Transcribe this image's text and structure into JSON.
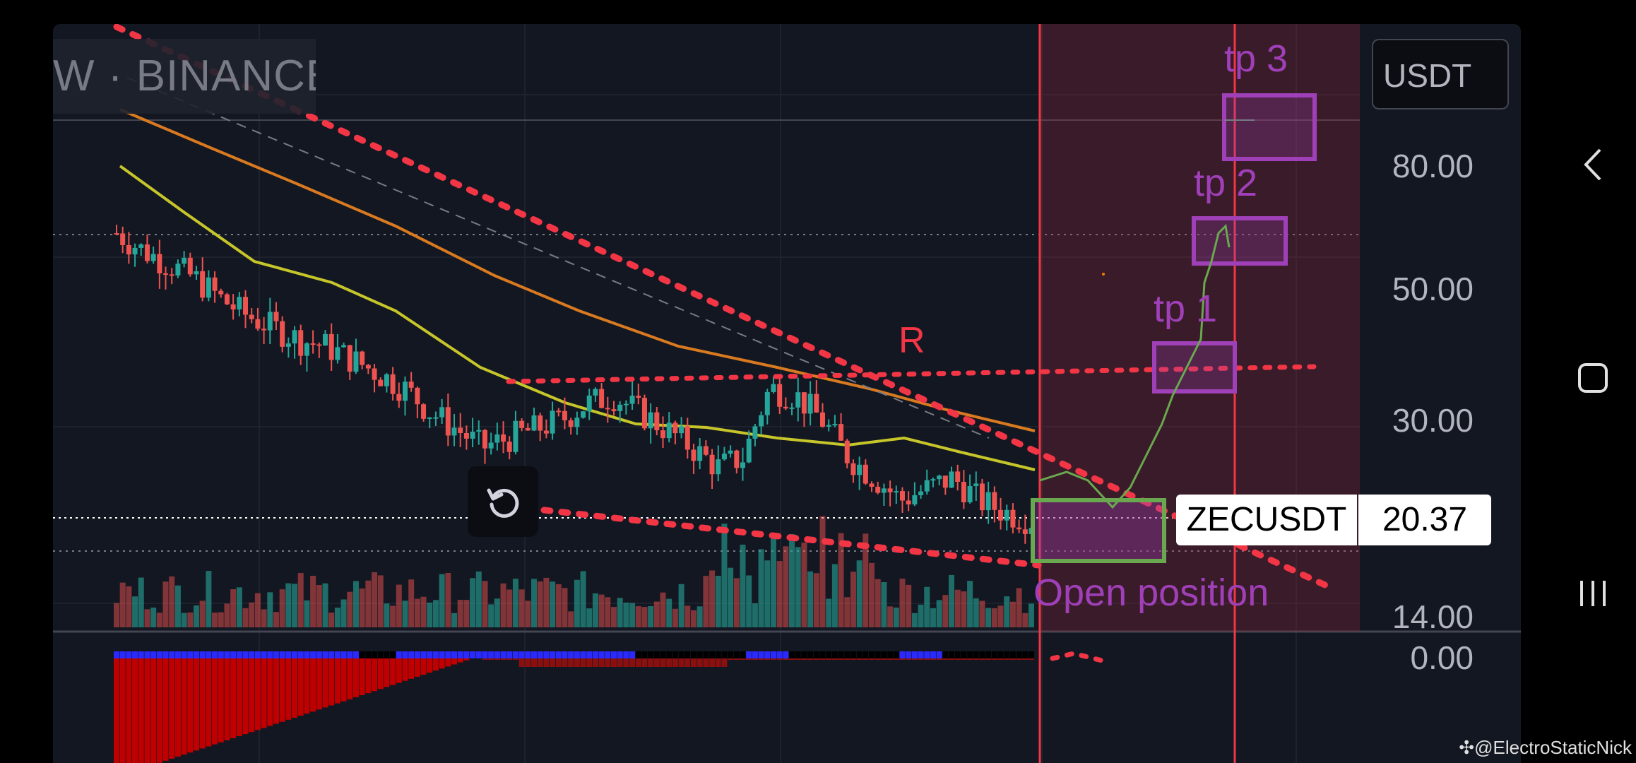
{
  "header": {
    "symbol_exchange": "W · BINANCE",
    "currency": "USDT"
  },
  "price_scale": {
    "labels": [
      "80.00",
      "50.00",
      "30.00",
      "14.00",
      "0.00"
    ]
  },
  "last_price": {
    "symbol": "ZECUSDT",
    "price": "20.37"
  },
  "annotations": {
    "resistance": "R",
    "tp1": "tp 1",
    "tp2": "tp 2",
    "tp3": "tp 3",
    "open_position": "Open position"
  },
  "icons": {
    "replay": "replay-icon",
    "back": "back-icon",
    "home": "home-icon",
    "recents": "recents-icon"
  },
  "watermark": "@ElectroStaticNick",
  "colors": {
    "background": "#131722",
    "bull": "#26a69a",
    "bear": "#ef5350",
    "annotation_purple": "#a040b8",
    "trendline_red": "#f23645",
    "ma_fast": "#c6c62a",
    "ma_slow": "#d97a20",
    "path_green": "#6aa84f"
  },
  "chart_data": {
    "type": "candlestick",
    "symbol": "ZECUSDT",
    "y_scale": "log",
    "ylim": [
      14,
      110
    ],
    "targets": [
      {
        "name": "tp 1",
        "price": 38
      },
      {
        "name": "tp 2",
        "price": 62
      },
      {
        "name": "tp 3",
        "price": 92
      }
    ],
    "resistance": 36.5,
    "last_price": 20.37,
    "candles_close_trend": [
      62,
      58,
      55,
      52,
      48,
      45,
      43,
      41,
      40,
      38,
      36,
      34,
      31,
      29,
      27,
      28,
      29,
      30,
      32,
      33,
      31,
      29,
      27,
      25,
      26,
      34,
      33,
      30,
      26,
      24,
      22,
      23,
      24,
      22,
      21,
      20.37
    ]
  }
}
